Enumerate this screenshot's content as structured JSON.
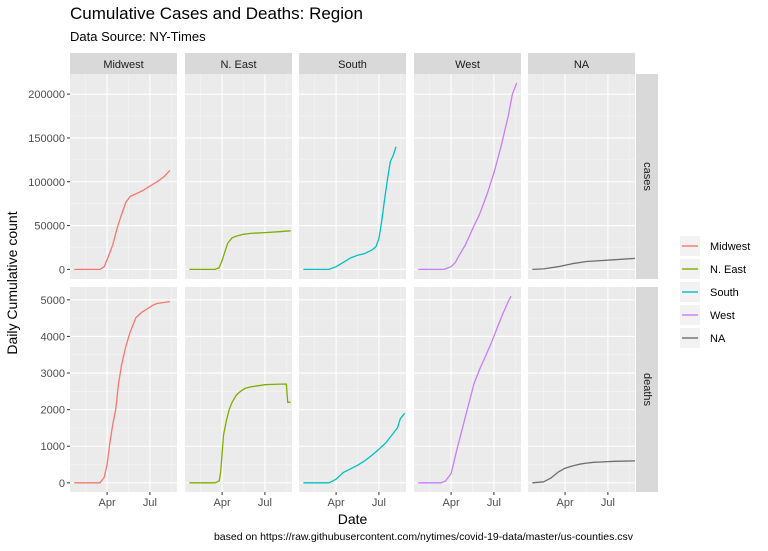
{
  "header": {
    "title": "Cumulative Cases and Deaths: Region",
    "subtitle": "Data Source: NY-Times"
  },
  "caption": "based on https://raw.githubusercontent.com/nytimes/covid-19-data/master/us-counties.csv",
  "chart_data": {
    "type": "line",
    "xlabel": "Date",
    "ylabel": "Daily Cumulative count",
    "columns": [
      "Midwest",
      "N. East",
      "South",
      "West",
      "NA"
    ],
    "rows": [
      "cases",
      "deaths"
    ],
    "x_ticks": [
      {
        "label": "Apr",
        "month": 3
      },
      {
        "label": "Jul",
        "month": 6
      }
    ],
    "x_range": [
      0.4,
      7.9
    ],
    "y_axes": {
      "cases": {
        "ticks": [
          0,
          50000,
          100000,
          150000,
          200000
        ],
        "labels": [
          "0",
          "50000",
          "100000",
          "150000",
          "200000"
        ],
        "ylim": [
          -11000,
          223000
        ]
      },
      "deaths": {
        "ticks": [
          0,
          1000,
          2000,
          3000,
          4000,
          5000
        ],
        "labels": [
          "0",
          "1000",
          "2000",
          "3000",
          "4000",
          "5000"
        ],
        "ylim": [
          -250,
          5350
        ]
      }
    },
    "legend": {
      "position": "right"
    },
    "colors": {
      "Midwest": "#F8766D",
      "N. East": "#7CAE00",
      "South": "#00BFC4",
      "West": "#C77CFF",
      "NA": "#6e6e6e"
    },
    "series": {
      "cases": {
        "Midwest": [
          [
            0.7,
            0
          ],
          [
            1.5,
            0
          ],
          [
            2.3,
            0
          ],
          [
            2.5,
            0
          ],
          [
            2.8,
            3000
          ],
          [
            3.1,
            15000
          ],
          [
            3.4,
            28000
          ],
          [
            3.7,
            47000
          ],
          [
            4.0,
            62000
          ],
          [
            4.3,
            76000
          ],
          [
            4.6,
            83000
          ],
          [
            5.0,
            86000
          ],
          [
            5.5,
            90000
          ],
          [
            6.0,
            95000
          ],
          [
            6.5,
            100000
          ],
          [
            7.0,
            106000
          ],
          [
            7.4,
            113000
          ]
        ],
        "N. East": [
          [
            0.7,
            0
          ],
          [
            1.5,
            0
          ],
          [
            2.5,
            0
          ],
          [
            2.8,
            2000
          ],
          [
            3.0,
            10000
          ],
          [
            3.2,
            20000
          ],
          [
            3.4,
            30000
          ],
          [
            3.7,
            36000
          ],
          [
            4.0,
            38000
          ],
          [
            4.5,
            40000
          ],
          [
            5.0,
            41000
          ],
          [
            6.0,
            42000
          ],
          [
            7.0,
            43000
          ],
          [
            7.8,
            44000
          ]
        ],
        "South": [
          [
            0.7,
            0
          ],
          [
            1.5,
            0
          ],
          [
            2.5,
            0
          ],
          [
            3.0,
            3000
          ],
          [
            3.5,
            8000
          ],
          [
            4.0,
            13000
          ],
          [
            4.5,
            16000
          ],
          [
            5.0,
            18000
          ],
          [
            5.5,
            22000
          ],
          [
            5.8,
            26000
          ],
          [
            6.0,
            35000
          ],
          [
            6.2,
            55000
          ],
          [
            6.4,
            80000
          ],
          [
            6.6,
            103000
          ],
          [
            6.8,
            123000
          ],
          [
            7.0,
            130000
          ],
          [
            7.2,
            140000
          ]
        ],
        "West": [
          [
            0.7,
            0
          ],
          [
            1.5,
            0
          ],
          [
            2.5,
            0
          ],
          [
            3.0,
            3000
          ],
          [
            3.3,
            8000
          ],
          [
            3.5,
            14000
          ],
          [
            4.0,
            28000
          ],
          [
            4.5,
            46000
          ],
          [
            5.0,
            63000
          ],
          [
            5.5,
            85000
          ],
          [
            6.0,
            110000
          ],
          [
            6.5,
            140000
          ],
          [
            7.0,
            175000
          ],
          [
            7.3,
            200000
          ],
          [
            7.6,
            213000
          ]
        ],
        "NA": [
          [
            0.7,
            0
          ],
          [
            1.5,
            500
          ],
          [
            2.5,
            3000
          ],
          [
            3.5,
            6500
          ],
          [
            4.5,
            9000
          ],
          [
            5.5,
            10000
          ],
          [
            6.5,
            11000
          ],
          [
            7.9,
            12500
          ]
        ]
      },
      "deaths": {
        "Midwest": [
          [
            0.7,
            0
          ],
          [
            1.5,
            0
          ],
          [
            2.5,
            0
          ],
          [
            2.8,
            150
          ],
          [
            3.0,
            500
          ],
          [
            3.2,
            1100
          ],
          [
            3.4,
            1600
          ],
          [
            3.6,
            2000
          ],
          [
            3.8,
            2700
          ],
          [
            4.0,
            3200
          ],
          [
            4.3,
            3700
          ],
          [
            4.6,
            4100
          ],
          [
            5.0,
            4500
          ],
          [
            5.4,
            4650
          ],
          [
            5.8,
            4750
          ],
          [
            6.2,
            4850
          ],
          [
            6.5,
            4900
          ],
          [
            7.4,
            4950
          ]
        ],
        "N. East": [
          [
            0.7,
            0
          ],
          [
            1.5,
            0
          ],
          [
            2.5,
            0
          ],
          [
            2.8,
            50
          ],
          [
            2.9,
            300
          ],
          [
            3.0,
            800
          ],
          [
            3.1,
            1300
          ],
          [
            3.3,
            1700
          ],
          [
            3.5,
            2000
          ],
          [
            3.7,
            2200
          ],
          [
            4.0,
            2400
          ],
          [
            4.3,
            2500
          ],
          [
            4.6,
            2580
          ],
          [
            5.0,
            2620
          ],
          [
            5.5,
            2650
          ],
          [
            6.0,
            2680
          ],
          [
            6.5,
            2690
          ],
          [
            7.5,
            2700
          ],
          [
            7.6,
            2200
          ],
          [
            7.8,
            2200
          ]
        ],
        "South": [
          [
            0.7,
            0
          ],
          [
            1.5,
            0
          ],
          [
            2.5,
            0
          ],
          [
            3.0,
            100
          ],
          [
            3.5,
            280
          ],
          [
            4.0,
            380
          ],
          [
            4.5,
            480
          ],
          [
            5.0,
            600
          ],
          [
            5.5,
            750
          ],
          [
            6.0,
            920
          ],
          [
            6.5,
            1100
          ],
          [
            7.0,
            1350
          ],
          [
            7.3,
            1500
          ],
          [
            7.5,
            1750
          ],
          [
            7.8,
            1900
          ]
        ],
        "West": [
          [
            0.7,
            0
          ],
          [
            1.5,
            0
          ],
          [
            2.3,
            0
          ],
          [
            2.6,
            50
          ],
          [
            3.0,
            250
          ],
          [
            3.4,
            900
          ],
          [
            3.8,
            1500
          ],
          [
            4.2,
            2100
          ],
          [
            4.6,
            2700
          ],
          [
            5.0,
            3100
          ],
          [
            5.4,
            3450
          ],
          [
            5.8,
            3800
          ],
          [
            6.2,
            4200
          ],
          [
            6.6,
            4600
          ],
          [
            7.0,
            4950
          ],
          [
            7.2,
            5100
          ]
        ],
        "NA": [
          [
            0.7,
            0
          ],
          [
            1.5,
            30
          ],
          [
            2.0,
            130
          ],
          [
            2.5,
            290
          ],
          [
            3.0,
            400
          ],
          [
            3.5,
            460
          ],
          [
            4.0,
            510
          ],
          [
            4.5,
            540
          ],
          [
            5.0,
            560
          ],
          [
            5.5,
            570
          ],
          [
            6.0,
            580
          ],
          [
            6.5,
            590
          ],
          [
            7.9,
            600
          ]
        ]
      }
    }
  }
}
